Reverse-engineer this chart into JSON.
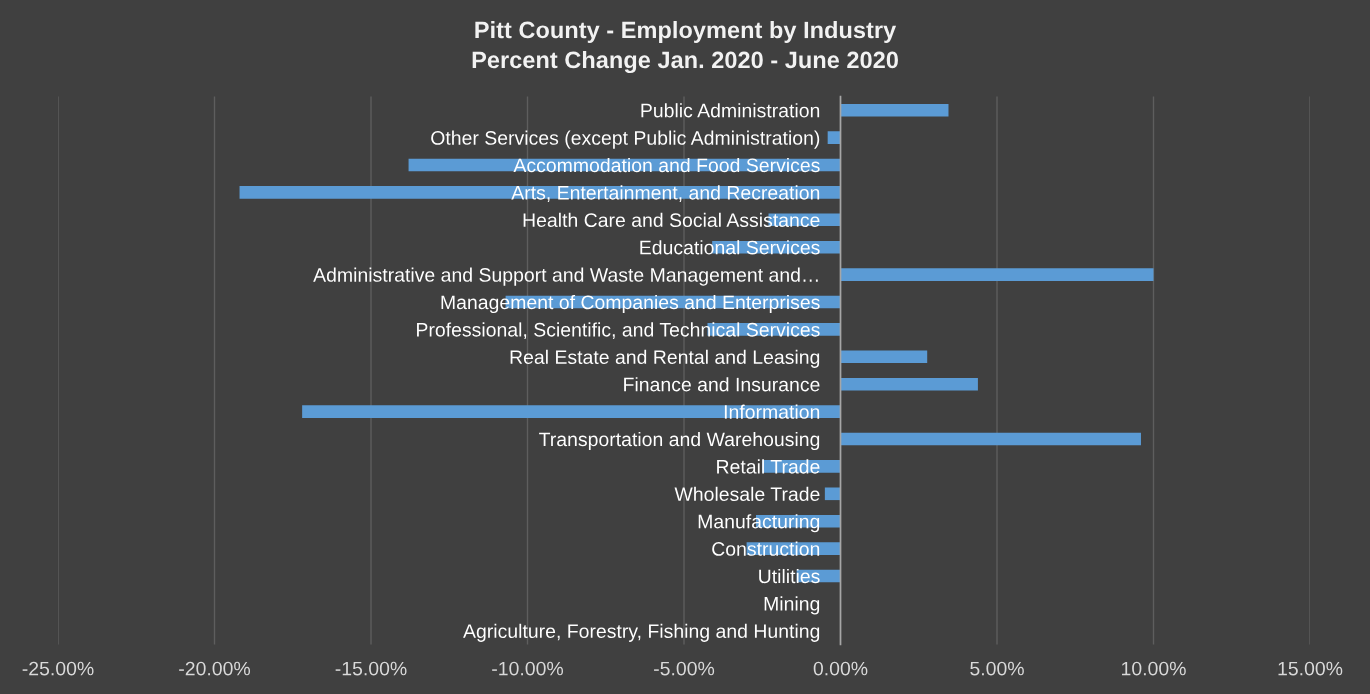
{
  "chart_data": {
    "type": "bar",
    "orientation": "horizontal",
    "title": "Pitt County - Employment by Industry",
    "subtitle": "Percent Change Jan. 2020 - June 2020",
    "categories": [
      "Public Administration",
      "Other Services (except Public Administration)",
      "Accommodation and Food Services",
      "Arts, Entertainment, and Recreation",
      "Health Care and Social Assistance",
      "Educational Services",
      "Administrative and Support and Waste Management and…",
      "Management of Companies and Enterprises",
      "Professional, Scientific, and Technical Services",
      "Real Estate and Rental and Leasing",
      "Finance and Insurance",
      "Information",
      "Transportation and Warehousing",
      "Retail Trade",
      "Wholesale Trade",
      "Manufacturing",
      "Construction",
      "Utilities",
      "Mining",
      "Agriculture, Forestry, Fishing and Hunting"
    ],
    "values": [
      3.45,
      -0.41,
      -13.8,
      -19.2,
      -2.3,
      -4.1,
      10.0,
      -10.7,
      -4.25,
      2.77,
      4.39,
      -17.2,
      9.6,
      -2.5,
      -0.5,
      -2.7,
      -3.0,
      -1.4,
      0,
      0
    ],
    "color": "#5b9bd5",
    "xlim": [
      -25,
      15
    ],
    "xticks": [
      {
        "value": -25,
        "label": "-25.00%"
      },
      {
        "value": -20,
        "label": "-20.00%"
      },
      {
        "value": -15,
        "label": "-15.00%"
      },
      {
        "value": -10,
        "label": "-10.00%"
      },
      {
        "value": -5,
        "label": "-5.00%"
      },
      {
        "value": 0,
        "label": "0.00%"
      },
      {
        "value": 5,
        "label": "5.00%"
      },
      {
        "value": 10,
        "label": "10.00%"
      },
      {
        "value": 15,
        "label": "15.00%"
      }
    ],
    "grid": "x"
  }
}
